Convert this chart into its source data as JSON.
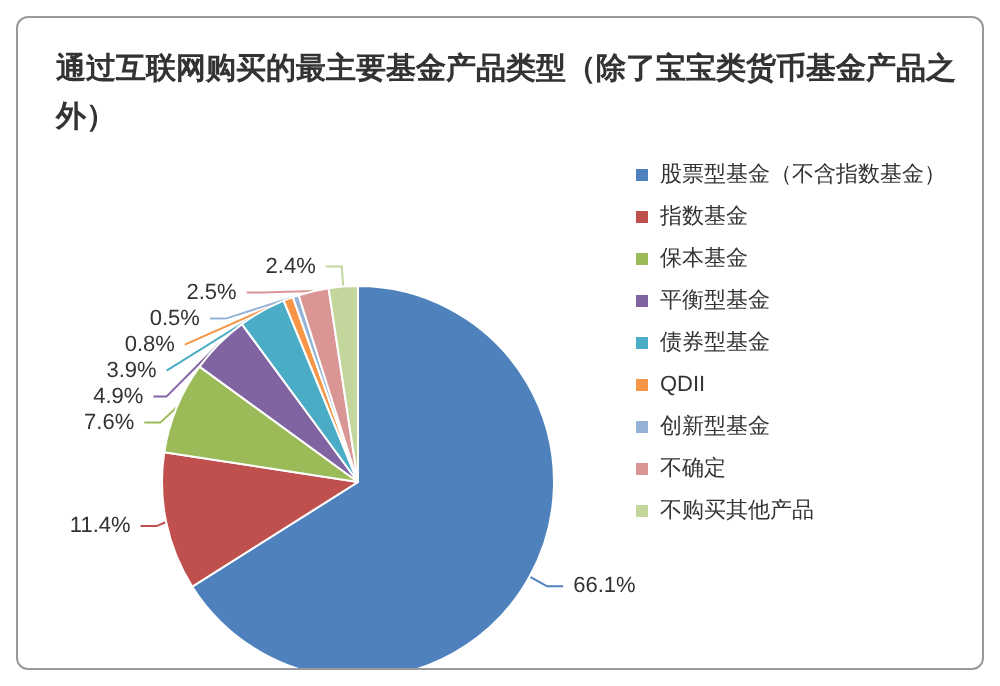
{
  "chart_data": {
    "type": "pie",
    "title": "通过互联网购买的最主要基金产品类型（除了宝宝类货币基金产品之外）",
    "categories": [
      "股票型基金（不含指数基金）",
      "指数基金",
      "保本基金",
      "平衡型基金",
      "债券型基金",
      "QDII",
      "创新型基金",
      "不确定",
      "不购买其他产品"
    ],
    "values": [
      66.1,
      11.4,
      7.6,
      4.9,
      3.9,
      0.8,
      0.5,
      2.5,
      2.4
    ],
    "value_labels": [
      "66.1%",
      "11.4%",
      "7.6%",
      "4.9%",
      "3.9%",
      "0.8%",
      "0.5%",
      "2.5%",
      "2.4%"
    ],
    "colors": [
      "#4f81bd",
      "#c0504d",
      "#9bbb59",
      "#8064a2",
      "#4bacc6",
      "#f79646",
      "#95b3d7",
      "#da9694",
      "#c3d69b"
    ],
    "legend": "right"
  }
}
